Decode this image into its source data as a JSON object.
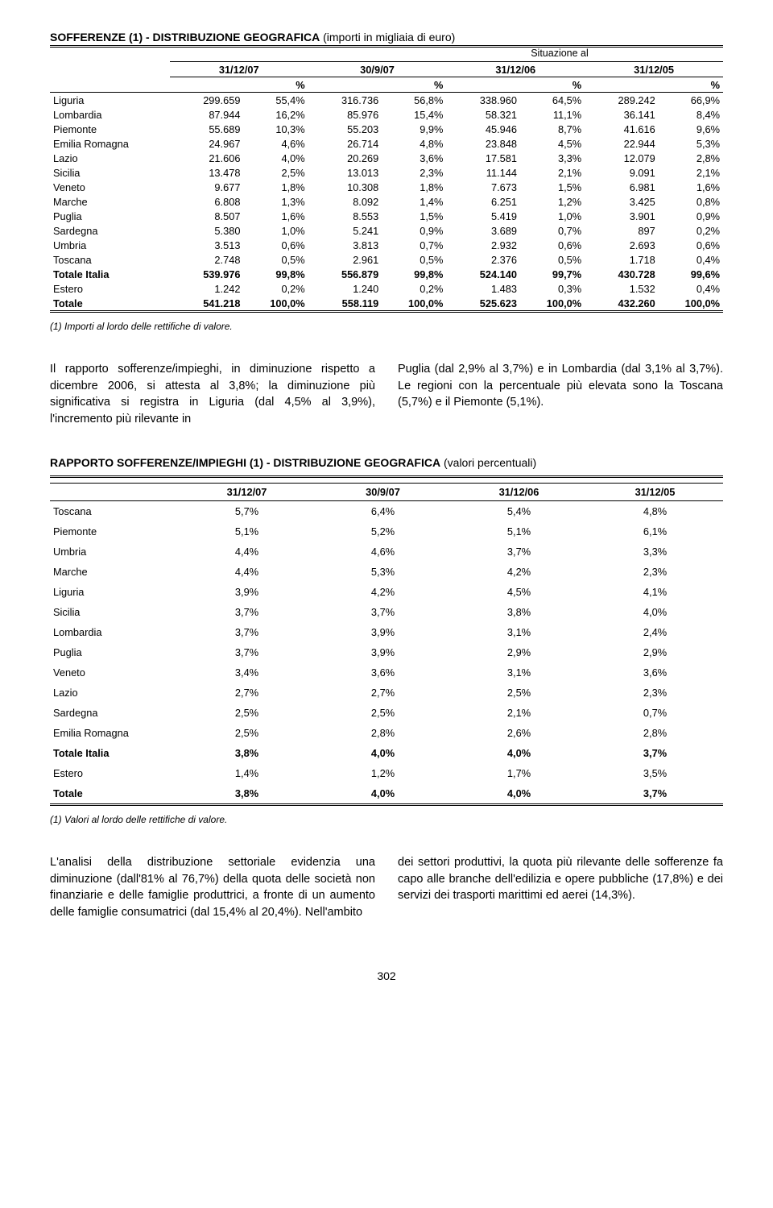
{
  "table1": {
    "title_bold": "SOFFERENZE (1) - DISTRIBUZIONE GEOGRAFICA",
    "title_light": " (importi in migliaia di euro)",
    "caption": "Situazione al",
    "date_headers": [
      "31/12/07",
      "30/9/07",
      "31/12/06",
      "31/12/05"
    ],
    "pct_symbol": "%",
    "rows": [
      {
        "label": "Liguria",
        "v": [
          "299.659",
          "55,4%",
          "316.736",
          "56,8%",
          "338.960",
          "64,5%",
          "289.242",
          "66,9%"
        ]
      },
      {
        "label": "Lombardia",
        "v": [
          "87.944",
          "16,2%",
          "85.976",
          "15,4%",
          "58.321",
          "11,1%",
          "36.141",
          "8,4%"
        ]
      },
      {
        "label": "Piemonte",
        "v": [
          "55.689",
          "10,3%",
          "55.203",
          "9,9%",
          "45.946",
          "8,7%",
          "41.616",
          "9,6%"
        ]
      },
      {
        "label": "Emilia Romagna",
        "v": [
          "24.967",
          "4,6%",
          "26.714",
          "4,8%",
          "23.848",
          "4,5%",
          "22.944",
          "5,3%"
        ]
      },
      {
        "label": "Lazio",
        "v": [
          "21.606",
          "4,0%",
          "20.269",
          "3,6%",
          "17.581",
          "3,3%",
          "12.079",
          "2,8%"
        ]
      },
      {
        "label": "Sicilia",
        "v": [
          "13.478",
          "2,5%",
          "13.013",
          "2,3%",
          "11.144",
          "2,1%",
          "9.091",
          "2,1%"
        ]
      },
      {
        "label": "Veneto",
        "v": [
          "9.677",
          "1,8%",
          "10.308",
          "1,8%",
          "7.673",
          "1,5%",
          "6.981",
          "1,6%"
        ]
      },
      {
        "label": "Marche",
        "v": [
          "6.808",
          "1,3%",
          "8.092",
          "1,4%",
          "6.251",
          "1,2%",
          "3.425",
          "0,8%"
        ]
      },
      {
        "label": "Puglia",
        "v": [
          "8.507",
          "1,6%",
          "8.553",
          "1,5%",
          "5.419",
          "1,0%",
          "3.901",
          "0,9%"
        ]
      },
      {
        "label": "Sardegna",
        "v": [
          "5.380",
          "1,0%",
          "5.241",
          "0,9%",
          "3.689",
          "0,7%",
          "897",
          "0,2%"
        ]
      },
      {
        "label": "Umbria",
        "v": [
          "3.513",
          "0,6%",
          "3.813",
          "0,7%",
          "2.932",
          "0,6%",
          "2.693",
          "0,6%"
        ]
      },
      {
        "label": "Toscana",
        "v": [
          "2.748",
          "0,5%",
          "2.961",
          "0,5%",
          "2.376",
          "0,5%",
          "1.718",
          "0,4%"
        ]
      },
      {
        "label": "Totale Italia",
        "bold": true,
        "v": [
          "539.976",
          "99,8%",
          "556.879",
          "99,8%",
          "524.140",
          "99,7%",
          "430.728",
          "99,6%"
        ]
      },
      {
        "label": "Estero",
        "v": [
          "1.242",
          "0,2%",
          "1.240",
          "0,2%",
          "1.483",
          "0,3%",
          "1.532",
          "0,4%"
        ]
      },
      {
        "label": "Totale",
        "bold": true,
        "v": [
          "541.218",
          "100,0%",
          "558.119",
          "100,0%",
          "525.623",
          "100,0%",
          "432.260",
          "100,0%"
        ]
      }
    ],
    "footnote": "(1) Importi al lordo delle rettifiche di valore."
  },
  "para1_left": "Il rapporto sofferenze/impieghi, in diminuzione rispetto a dicembre 2006, si attesta al 3,8%; la diminuzione più significativa si registra in Liguria (dal 4,5% al 3,9%), l'incremento più rilevante in",
  "para1_right": "Puglia (dal 2,9% al 3,7%) e in Lombardia (dal 3,1% al 3,7%). Le regioni con la percentuale più elevata sono la Toscana (5,7%) e il Piemonte (5,1%).",
  "table2": {
    "title_bold": "RAPPORTO SOFFERENZE/IMPIEGHI (1) - DISTRIBUZIONE GEOGRAFICA",
    "title_light": " (valori percentuali)",
    "date_headers": [
      "31/12/07",
      "30/9/07",
      "31/12/06",
      "31/12/05"
    ],
    "rows": [
      {
        "label": "Toscana",
        "v": [
          "5,7%",
          "6,4%",
          "5,4%",
          "4,8%"
        ]
      },
      {
        "label": "Piemonte",
        "v": [
          "5,1%",
          "5,2%",
          "5,1%",
          "6,1%"
        ]
      },
      {
        "label": "Umbria",
        "v": [
          "4,4%",
          "4,6%",
          "3,7%",
          "3,3%"
        ]
      },
      {
        "label": "Marche",
        "v": [
          "4,4%",
          "5,3%",
          "4,2%",
          "2,3%"
        ]
      },
      {
        "label": "Liguria",
        "v": [
          "3,9%",
          "4,2%",
          "4,5%",
          "4,1%"
        ]
      },
      {
        "label": "Sicilia",
        "v": [
          "3,7%",
          "3,7%",
          "3,8%",
          "4,0%"
        ]
      },
      {
        "label": "Lombardia",
        "v": [
          "3,7%",
          "3,9%",
          "3,1%",
          "2,4%"
        ]
      },
      {
        "label": "Puglia",
        "v": [
          "3,7%",
          "3,9%",
          "2,9%",
          "2,9%"
        ]
      },
      {
        "label": "Veneto",
        "v": [
          "3,4%",
          "3,6%",
          "3,1%",
          "3,6%"
        ]
      },
      {
        "label": "Lazio",
        "v": [
          "2,7%",
          "2,7%",
          "2,5%",
          "2,3%"
        ]
      },
      {
        "label": "Sardegna",
        "v": [
          "2,5%",
          "2,5%",
          "2,1%",
          "0,7%"
        ]
      },
      {
        "label": "Emilia Romagna",
        "v": [
          "2,5%",
          "2,8%",
          "2,6%",
          "2,8%"
        ]
      },
      {
        "label": "Totale Italia",
        "bold": true,
        "v": [
          "3,8%",
          "4,0%",
          "4,0%",
          "3,7%"
        ]
      },
      {
        "label": "Estero",
        "v": [
          "1,4%",
          "1,2%",
          "1,7%",
          "3,5%"
        ]
      },
      {
        "label": "Totale",
        "bold": true,
        "v": [
          "3,8%",
          "4,0%",
          "4,0%",
          "3,7%"
        ]
      }
    ],
    "footnote": "(1) Valori al lordo delle rettifiche di valore."
  },
  "para2_left": "L'analisi della distribuzione settoriale evidenzia una diminuzione (dall'81% al 76,7%) della quota delle società non finanziarie e delle famiglie produttrici, a fronte di un aumento delle famiglie consumatrici (dal 15,4% al 20,4%). Nell'ambito",
  "para2_right": "dei settori produttivi, la quota più rilevante delle sofferenze fa capo alle branche dell'edilizia e opere pubbliche (17,8%) e dei servizi dei trasporti marittimi ed aerei (14,3%).",
  "page_number": "302"
}
